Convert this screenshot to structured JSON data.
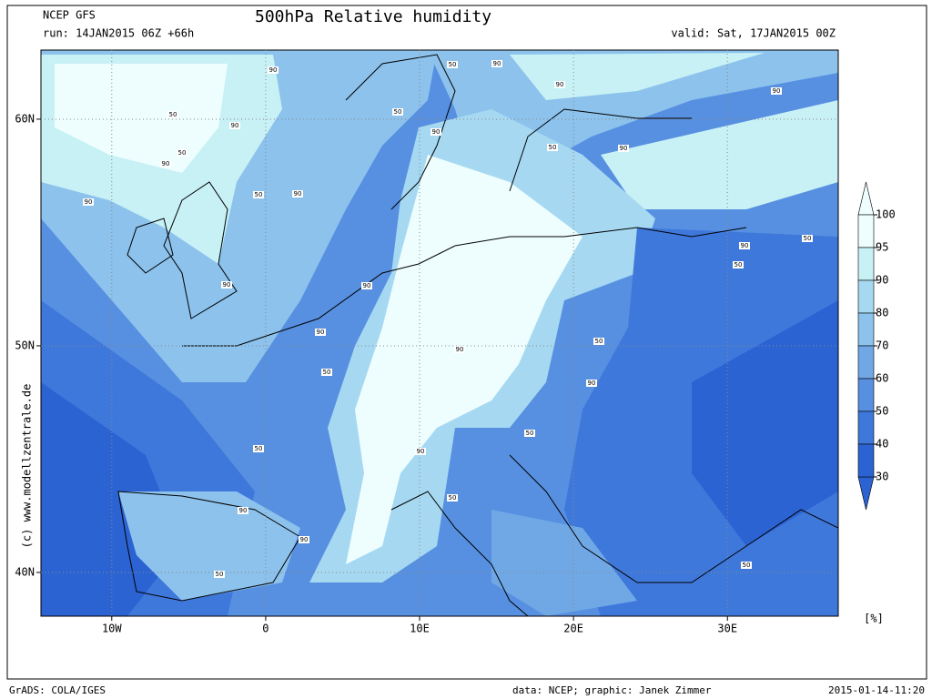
{
  "header": {
    "model": "NCEP GFS",
    "run": "run: 14JAN2015 06Z +66h",
    "title": "500hPa Relative humidity",
    "valid": "valid: Sat, 17JAN2015 00Z"
  },
  "map": {
    "xlim": [
      -14.6,
      37.2
    ],
    "ylim": [
      38.07,
      63.05
    ],
    "xticks": [
      {
        "value": -10,
        "label": "10W"
      },
      0,
      {
        "value": 10,
        "label": "10E"
      },
      {
        "value": 20,
        "label": "20E"
      },
      {
        "value": 30,
        "label": "30E"
      }
    ],
    "yticks": [
      {
        "value": 40,
        "label": "40N"
      },
      {
        "value": 50,
        "label": "50N"
      },
      {
        "value": 60,
        "label": "60N"
      }
    ],
    "grid": true,
    "contour_labels": [
      "90",
      "50",
      "90",
      "90",
      "90",
      "50",
      "50",
      "90",
      "90",
      "50",
      "90",
      "50",
      "90",
      "50",
      "90",
      "90",
      "50",
      "90",
      "50",
      "90",
      "90",
      "90",
      "50",
      "90",
      "50",
      "90",
      "50",
      "50",
      "90",
      "50",
      "90",
      "90",
      "50",
      "50"
    ]
  },
  "colorbar": {
    "levels": [
      100,
      95,
      90,
      80,
      70,
      60,
      50,
      40,
      30
    ],
    "colors": [
      "#eefeff",
      "#c8f1f6",
      "#a6d9f1",
      "#8cc2ec",
      "#70a8e6",
      "#5790e1",
      "#3f78db",
      "#2c63d3"
    ],
    "unit": "[%]"
  },
  "footer": {
    "copyright": "(c) www.modellzentrale.de",
    "software": "GrADS: COLA/IGES",
    "credits": "data: NCEP; graphic: Janek Zimmer",
    "timestamp": "2015-01-14-11:20"
  }
}
